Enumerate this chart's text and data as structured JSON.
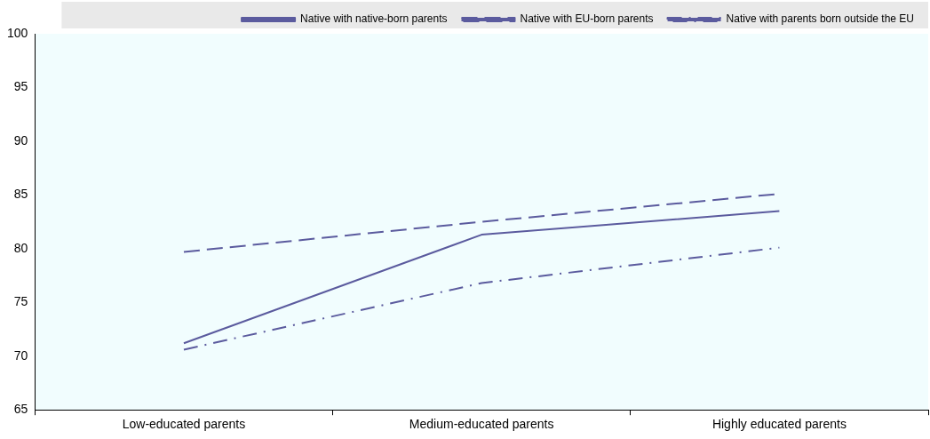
{
  "chart_data": {
    "type": "line",
    "categories": [
      "Low-educated parents",
      "Medium-educated parents",
      "Highly educated parents"
    ],
    "series": [
      {
        "name": "Native with native-born parents",
        "color": "#5b5b9e",
        "line_style": "solid",
        "values": [
          71.2,
          81.3,
          83.5
        ]
      },
      {
        "name": "Native with EU-born parents",
        "color": "#5b5b9e",
        "line_style": "dashed",
        "values": [
          79.7,
          82.5,
          85.1
        ]
      },
      {
        "name": "Native with parents born outside the EU",
        "color": "#5b5b9e",
        "line_style": "dashdot",
        "values": [
          70.6,
          76.8,
          80.1
        ]
      }
    ],
    "ylim": [
      65,
      100
    ],
    "yticks": [
      65,
      70,
      75,
      80,
      85,
      90,
      95,
      100
    ],
    "grid": false,
    "legend": "top",
    "marker": "none"
  }
}
